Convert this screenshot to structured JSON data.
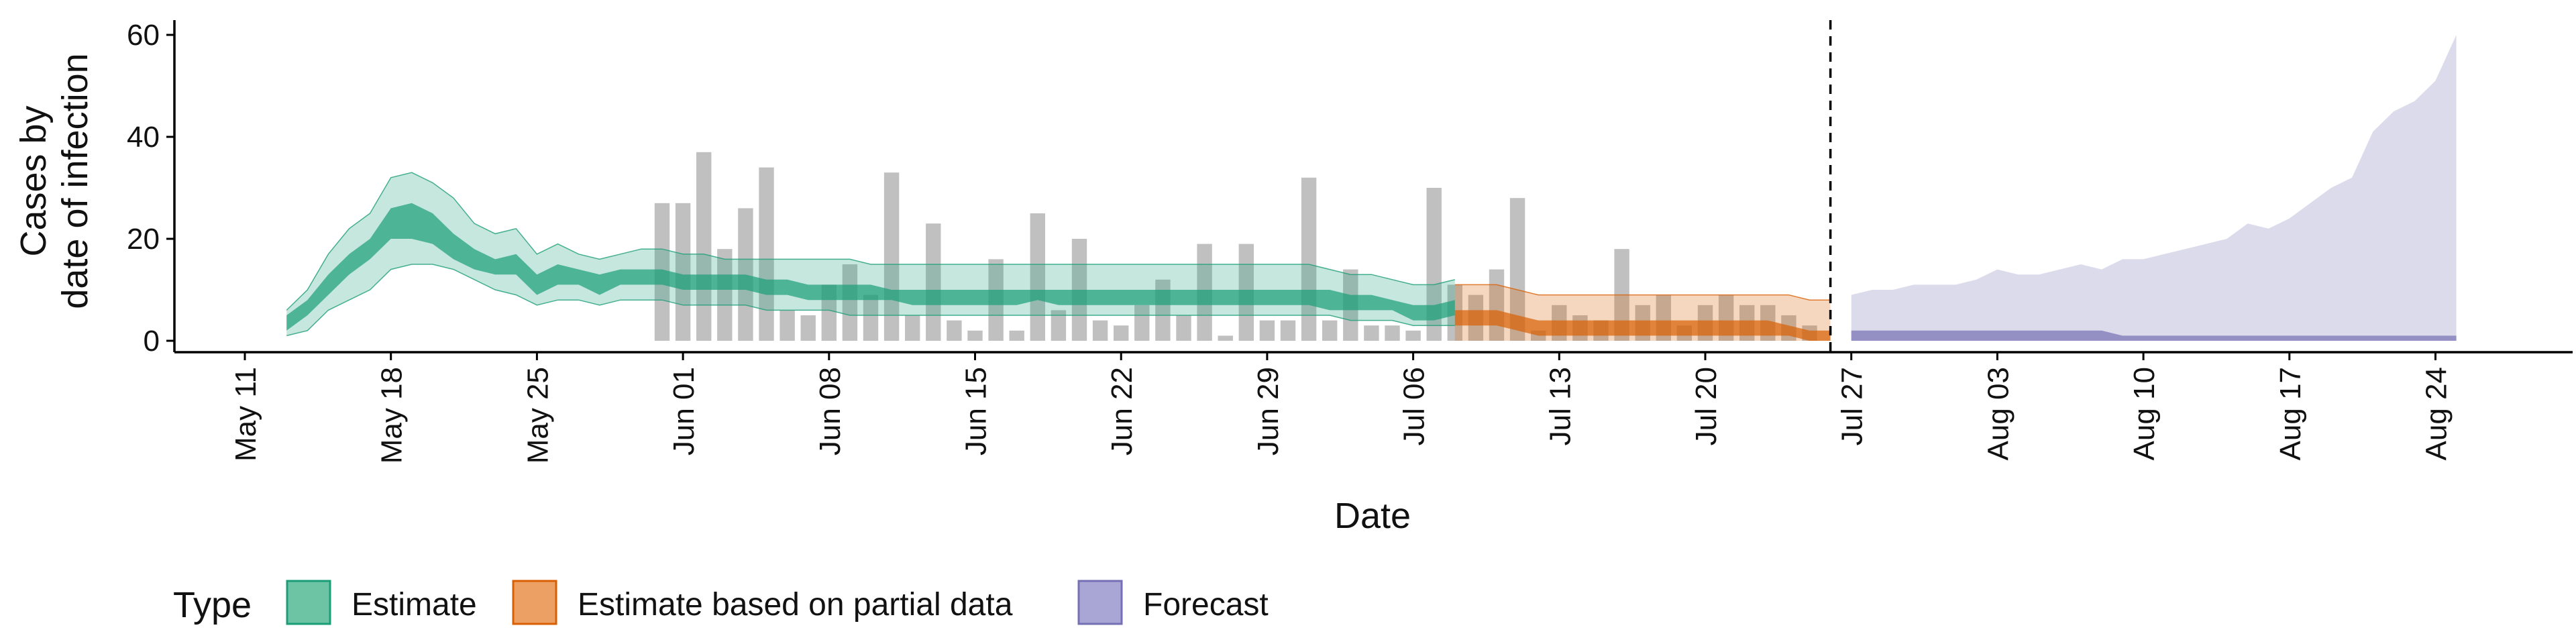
{
  "chart_data": {
    "type": "area",
    "ylabel_lines": [
      "Cases by",
      "date of infection"
    ],
    "xlabel": "Date",
    "ylim": [
      0,
      62
    ],
    "yticks": [
      0,
      20,
      40,
      60
    ],
    "xlim": [
      "2020-05-07",
      "2020-08-30"
    ],
    "xticks": [
      {
        "date": "2020-05-11",
        "label": "May 11"
      },
      {
        "date": "2020-05-18",
        "label": "May 18"
      },
      {
        "date": "2020-05-25",
        "label": "May 25"
      },
      {
        "date": "2020-06-01",
        "label": "Jun 01"
      },
      {
        "date": "2020-06-08",
        "label": "Jun 08"
      },
      {
        "date": "2020-06-15",
        "label": "Jun 15"
      },
      {
        "date": "2020-06-22",
        "label": "Jun 22"
      },
      {
        "date": "2020-06-29",
        "label": "Jun 29"
      },
      {
        "date": "2020-07-06",
        "label": "Jul 06"
      },
      {
        "date": "2020-07-13",
        "label": "Jul 13"
      },
      {
        "date": "2020-07-20",
        "label": "Jul 20"
      },
      {
        "date": "2020-07-27",
        "label": "Jul 27"
      },
      {
        "date": "2020-08-03",
        "label": "Aug 03"
      },
      {
        "date": "2020-08-10",
        "label": "Aug 10"
      },
      {
        "date": "2020-08-17",
        "label": "Aug 17"
      },
      {
        "date": "2020-08-24",
        "label": "Aug 24"
      }
    ],
    "forecast_start_date": "2020-07-26",
    "legend": {
      "title": "Type",
      "position": "bottom",
      "items": [
        {
          "label": "Estimate",
          "fill": "#6cc4a4",
          "stroke": "#1b9e77"
        },
        {
          "label": "Estimate based on partial data",
          "fill": "#eda063",
          "stroke": "#d95f02"
        },
        {
          "label": "Forecast",
          "fill": "#a9a5d4",
          "stroke": "#7570b3"
        }
      ]
    },
    "colors": {
      "estimate": "#1b9e77",
      "partial": "#d95f02",
      "forecast": "#7570b3",
      "reported_bars": "#bdbdbd",
      "axis": "#000000"
    },
    "reported_cases": {
      "dates": [
        "2020-05-31",
        "2020-06-01",
        "2020-06-02",
        "2020-06-03",
        "2020-06-04",
        "2020-06-05",
        "2020-06-06",
        "2020-06-07",
        "2020-06-08",
        "2020-06-09",
        "2020-06-10",
        "2020-06-11",
        "2020-06-12",
        "2020-06-13",
        "2020-06-14",
        "2020-06-15",
        "2020-06-16",
        "2020-06-17",
        "2020-06-18",
        "2020-06-19",
        "2020-06-20",
        "2020-06-21",
        "2020-06-22",
        "2020-06-23",
        "2020-06-24",
        "2020-06-25",
        "2020-06-26",
        "2020-06-27",
        "2020-06-28",
        "2020-06-29",
        "2020-06-30",
        "2020-07-01",
        "2020-07-02",
        "2020-07-03",
        "2020-07-04",
        "2020-07-05",
        "2020-07-06",
        "2020-07-07",
        "2020-07-08",
        "2020-07-09",
        "2020-07-10",
        "2020-07-11",
        "2020-07-12",
        "2020-07-13",
        "2020-07-14",
        "2020-07-15",
        "2020-07-16",
        "2020-07-17",
        "2020-07-18",
        "2020-07-19",
        "2020-07-20",
        "2020-07-21",
        "2020-07-22",
        "2020-07-23",
        "2020-07-24",
        "2020-07-25"
      ],
      "values": [
        27,
        27,
        37,
        18,
        26,
        34,
        6,
        5,
        11,
        15,
        9,
        33,
        5,
        23,
        4,
        2,
        16,
        2,
        25,
        6,
        20,
        4,
        3,
        7,
        12,
        5,
        19,
        1,
        19,
        4,
        4,
        32,
        4,
        14,
        3,
        3,
        2,
        30,
        11,
        9,
        14,
        28,
        2,
        7,
        5,
        4,
        18,
        7,
        9,
        3,
        7,
        9,
        7,
        7,
        5,
        3
      ]
    },
    "estimate": {
      "dates": [
        "2020-05-13",
        "2020-05-14",
        "2020-05-15",
        "2020-05-16",
        "2020-05-17",
        "2020-05-18",
        "2020-05-19",
        "2020-05-20",
        "2020-05-21",
        "2020-05-22",
        "2020-05-23",
        "2020-05-24",
        "2020-05-25",
        "2020-05-26",
        "2020-05-27",
        "2020-05-28",
        "2020-05-29",
        "2020-05-30",
        "2020-05-31",
        "2020-06-01",
        "2020-06-02",
        "2020-06-03",
        "2020-06-04",
        "2020-06-05",
        "2020-06-06",
        "2020-06-07",
        "2020-06-08",
        "2020-06-09",
        "2020-06-10",
        "2020-06-11",
        "2020-06-12",
        "2020-06-13",
        "2020-06-14",
        "2020-06-15",
        "2020-06-16",
        "2020-06-17",
        "2020-06-18",
        "2020-06-19",
        "2020-06-20",
        "2020-06-21",
        "2020-06-22",
        "2020-06-23",
        "2020-06-24",
        "2020-06-25",
        "2020-06-26",
        "2020-06-27",
        "2020-06-28",
        "2020-06-29",
        "2020-06-30",
        "2020-07-01",
        "2020-07-02",
        "2020-07-03",
        "2020-07-04",
        "2020-07-05",
        "2020-07-06",
        "2020-07-07",
        "2020-07-08"
      ],
      "lower90": [
        1,
        2,
        6,
        8,
        10,
        14,
        15,
        15,
        14,
        12,
        10,
        9,
        7,
        8,
        8,
        7,
        8,
        8,
        8,
        7,
        7,
        7,
        7,
        6,
        6,
        6,
        6,
        5,
        5,
        5,
        5,
        5,
        5,
        5,
        5,
        5,
        5,
        5,
        5,
        5,
        5,
        5,
        5,
        5,
        5,
        5,
        5,
        5,
        5,
        5,
        5,
        4,
        4,
        4,
        3,
        3,
        3
      ],
      "lower50": [
        2,
        5,
        9,
        13,
        16,
        20,
        20,
        19,
        16,
        14,
        13,
        13,
        9,
        11,
        11,
        9,
        11,
        11,
        11,
        10,
        10,
        10,
        10,
        9,
        9,
        8,
        8,
        8,
        8,
        8,
        7,
        7,
        7,
        7,
        7,
        7,
        8,
        7,
        7,
        7,
        7,
        7,
        7,
        7,
        7,
        7,
        7,
        7,
        7,
        7,
        6,
        6,
        6,
        6,
        4,
        4,
        5
      ],
      "upper50": [
        5,
        8,
        13,
        17,
        20,
        26,
        27,
        25,
        21,
        18,
        16,
        17,
        13,
        15,
        14,
        13,
        14,
        14,
        14,
        13,
        13,
        13,
        13,
        12,
        12,
        11,
        11,
        11,
        11,
        10,
        10,
        10,
        10,
        10,
        10,
        10,
        10,
        10,
        10,
        10,
        10,
        10,
        10,
        10,
        10,
        10,
        10,
        10,
        10,
        10,
        10,
        9,
        9,
        8,
        7,
        7,
        8
      ],
      "upper90": [
        6,
        10,
        17,
        22,
        25,
        32,
        33,
        31,
        28,
        23,
        21,
        22,
        17,
        19,
        17,
        16,
        17,
        18,
        18,
        17,
        17,
        16,
        16,
        16,
        16,
        16,
        16,
        16,
        15,
        15,
        15,
        15,
        15,
        15,
        15,
        15,
        15,
        15,
        15,
        15,
        15,
        15,
        15,
        15,
        15,
        15,
        15,
        15,
        15,
        15,
        14,
        13,
        13,
        12,
        11,
        11,
        12
      ]
    },
    "partial": {
      "dates": [
        "2020-07-08",
        "2020-07-09",
        "2020-07-10",
        "2020-07-11",
        "2020-07-12",
        "2020-07-13",
        "2020-07-14",
        "2020-07-15",
        "2020-07-16",
        "2020-07-17",
        "2020-07-18",
        "2020-07-19",
        "2020-07-20",
        "2020-07-21",
        "2020-07-22",
        "2020-07-23",
        "2020-07-24",
        "2020-07-25",
        "2020-07-26"
      ],
      "lower90": [
        0,
        0,
        0,
        0,
        0,
        0,
        0,
        0,
        0,
        0,
        0,
        0,
        0,
        0,
        0,
        0,
        0,
        0,
        0
      ],
      "lower50": [
        3,
        3,
        3,
        2,
        1,
        1,
        1,
        1,
        1,
        1,
        1,
        1,
        1,
        1,
        1,
        1,
        1,
        0,
        0
      ],
      "upper50": [
        6,
        6,
        6,
        5,
        4,
        4,
        4,
        4,
        4,
        4,
        4,
        4,
        4,
        4,
        4,
        4,
        3,
        2,
        2
      ],
      "upper90": [
        11,
        11,
        11,
        10,
        9,
        9,
        9,
        9,
        9,
        9,
        9,
        9,
        9,
        9,
        9,
        9,
        9,
        8,
        8
      ]
    },
    "forecast": {
      "dates": [
        "2020-07-27",
        "2020-07-28",
        "2020-07-29",
        "2020-07-30",
        "2020-07-31",
        "2020-08-01",
        "2020-08-02",
        "2020-08-03",
        "2020-08-04",
        "2020-08-05",
        "2020-08-06",
        "2020-08-07",
        "2020-08-08",
        "2020-08-09",
        "2020-08-10",
        "2020-08-11",
        "2020-08-12",
        "2020-08-13",
        "2020-08-14",
        "2020-08-15",
        "2020-08-16",
        "2020-08-17",
        "2020-08-18",
        "2020-08-19",
        "2020-08-20",
        "2020-08-21",
        "2020-08-22",
        "2020-08-23",
        "2020-08-24",
        "2020-08-25"
      ],
      "lower50": [
        0,
        0,
        0,
        0,
        0,
        0,
        0,
        0,
        0,
        0,
        0,
        0,
        0,
        0,
        0,
        0,
        0,
        0,
        0,
        0,
        0,
        0,
        0,
        0,
        0,
        0,
        0,
        0,
        0,
        0
      ],
      "upper50": [
        2,
        2,
        2,
        2,
        2,
        2,
        2,
        2,
        2,
        2,
        2,
        2,
        2,
        1,
        1,
        1,
        1,
        1,
        1,
        1,
        1,
        1,
        1,
        1,
        1,
        1,
        1,
        1,
        1,
        1
      ],
      "upper90": [
        9,
        10,
        10,
        11,
        11,
        11,
        12,
        14,
        13,
        13,
        14,
        15,
        14,
        16,
        16,
        17,
        18,
        19,
        20,
        23,
        22,
        24,
        27,
        30,
        32,
        41,
        45,
        47,
        51,
        60
      ]
    }
  }
}
